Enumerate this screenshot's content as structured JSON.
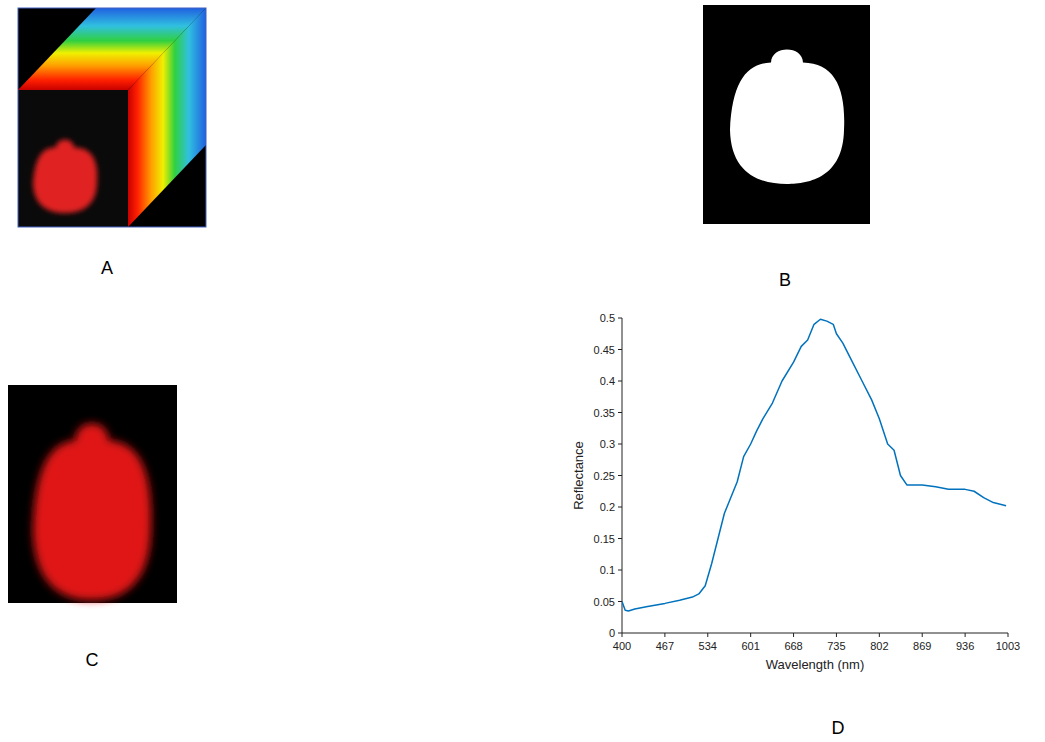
{
  "panels": {
    "labels": [
      "A",
      "B",
      "C",
      "D"
    ]
  },
  "chart_data": {
    "type": "line",
    "x_label": "Wavelength (nm)",
    "y_label": "Reflectance",
    "x": [
      400,
      405,
      410,
      420,
      440,
      467,
      490,
      510,
      520,
      530,
      540,
      550,
      560,
      570,
      580,
      590,
      601,
      610,
      620,
      635,
      650,
      668,
      680,
      690,
      700,
      710,
      720,
      730,
      735,
      745,
      760,
      775,
      790,
      802,
      815,
      825,
      835,
      845,
      869,
      890,
      910,
      936,
      950,
      965,
      980,
      1000
    ],
    "values": [
      0.05,
      0.036,
      0.035,
      0.038,
      0.042,
      0.047,
      0.052,
      0.057,
      0.062,
      0.075,
      0.11,
      0.15,
      0.19,
      0.215,
      0.24,
      0.28,
      0.3,
      0.32,
      0.34,
      0.365,
      0.4,
      0.43,
      0.455,
      0.465,
      0.49,
      0.498,
      0.495,
      0.49,
      0.475,
      0.46,
      0.43,
      0.4,
      0.37,
      0.34,
      0.3,
      0.29,
      0.25,
      0.235,
      0.235,
      0.232,
      0.228,
      0.228,
      0.225,
      0.215,
      0.207,
      0.202
    ],
    "color": "#0072bd",
    "xlim": [
      400,
      1003
    ],
    "xticks": [
      400,
      467,
      534,
      601,
      668,
      735,
      802,
      869,
      936,
      1003
    ],
    "ylim": [
      0,
      0.5
    ],
    "yticks": [
      0,
      0.05,
      0.1,
      0.15,
      0.2,
      0.25,
      0.3,
      0.35,
      0.4,
      0.45,
      0.5
    ],
    "grid": false
  }
}
